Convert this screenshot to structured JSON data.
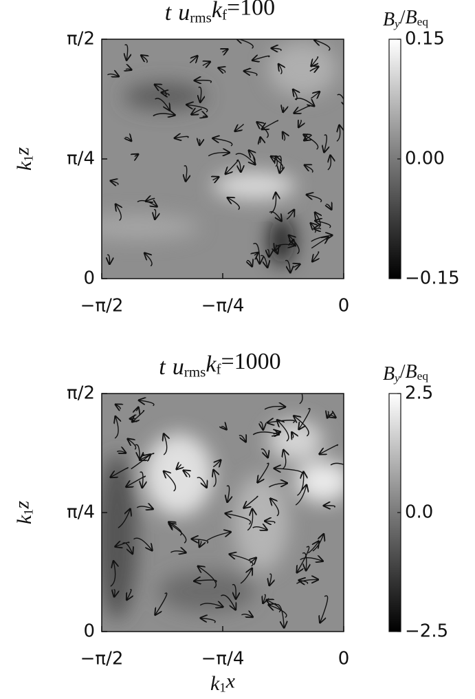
{
  "chart_data": [
    {
      "type": "heatmap",
      "title": [
        "t",
        "u",
        "rms",
        "k",
        "f",
        "=100"
      ],
      "ylabel": [
        "k",
        "1",
        "z"
      ],
      "xlim": [
        -1.5708,
        0
      ],
      "xticks": [
        {
          "value": -1.5708,
          "label": "−π/2"
        },
        {
          "value": -0.7854,
          "label": "−π/4"
        },
        0
      ],
      "ylim": [
        0,
        1.5708
      ],
      "yticks": [
        0,
        {
          "value": 0.7854,
          "label": "π/4"
        },
        {
          "value": 1.5708,
          "label": "π/2"
        }
      ],
      "colorbar_label": [
        "B",
        "y",
        "/",
        "B",
        "eq"
      ],
      "clim": [
        -0.15,
        0.15
      ],
      "cticks": [
        {
          "value": -0.15,
          "label": "−0.15"
        },
        {
          "value": 0,
          "label": "0.00"
        },
        {
          "value": 0.15,
          "label": "0.15"
        }
      ]
    },
    {
      "type": "heatmap",
      "title": [
        "t",
        "u",
        "rms",
        "k",
        "f",
        "=1000"
      ],
      "xlabel": [
        "k",
        "1",
        "x"
      ],
      "ylabel": [
        "k",
        "1",
        "z"
      ],
      "xlim": [
        -1.5708,
        0
      ],
      "xticks": [
        {
          "value": -1.5708,
          "label": "−π/2"
        },
        {
          "value": -0.7854,
          "label": "−π/4"
        },
        0
      ],
      "ylim": [
        0,
        1.5708
      ],
      "yticks": [
        0,
        {
          "value": 0.7854,
          "label": "π/4"
        },
        {
          "value": 1.5708,
          "label": "π/2"
        }
      ],
      "colorbar_label": [
        "B",
        "y",
        "/",
        "B",
        "eq"
      ],
      "clim": [
        -2.5,
        2.5
      ],
      "cticks": [
        {
          "value": -2.5,
          "label": "−2.5"
        },
        {
          "value": 0,
          "label": "0.0"
        },
        {
          "value": 2.5,
          "label": "2.5"
        }
      ]
    }
  ]
}
